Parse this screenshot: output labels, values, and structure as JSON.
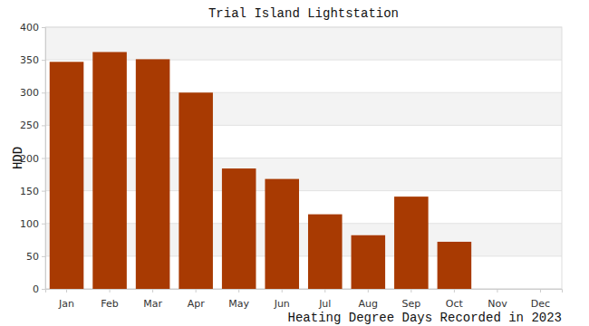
{
  "chart_data": {
    "type": "bar",
    "title": "Trial Island Lightstation",
    "x_label": "Heating Degree Days Recorded in 2023",
    "y_label": "HDD",
    "categories": [
      "Jan",
      "Feb",
      "Mar",
      "Apr",
      "May",
      "Jun",
      "Jul",
      "Aug",
      "Sep",
      "Oct",
      "Nov",
      "Dec"
    ],
    "values": [
      347,
      362,
      351,
      300,
      184,
      168,
      114,
      82,
      141,
      72,
      null,
      null
    ],
    "color": "#a83a02",
    "ylim": [
      0,
      400
    ],
    "yticks": [
      0,
      50,
      100,
      150,
      200,
      250,
      300,
      350,
      400
    ],
    "grid": true
  }
}
